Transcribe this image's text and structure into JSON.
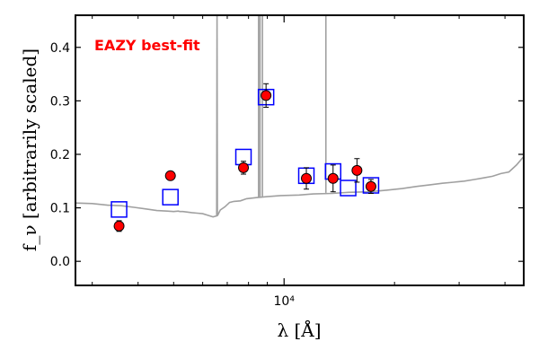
{
  "chart_data": {
    "type": "scatter",
    "annotation": "EAZY best-fit",
    "annotation_color": "#ff0000",
    "xlabel": "λ [Å]",
    "ylabel": "f_ν [arbitrarily scaled]",
    "x_scale": "log",
    "xlim": [
      2700,
      45000
    ],
    "ylim": [
      -0.045,
      0.46
    ],
    "x_tick_labels": [
      {
        "value": 10000,
        "label": "10⁴"
      }
    ],
    "y_ticks": [
      0.0,
      0.1,
      0.2,
      0.3,
      0.4
    ],
    "y_tick_labels": [
      "0.0",
      "0.1",
      "0.2",
      "0.3",
      "0.4"
    ],
    "grid": false,
    "series": [
      {
        "kind": "spectrum",
        "color": "#a0a0a0",
        "x": [
          2700,
          3000,
          3300,
          3600,
          3900,
          4200,
          4500,
          4800,
          5000,
          5150,
          5200,
          5300,
          5450,
          5600,
          5800,
          6000,
          6200,
          6400,
          6550,
          6565,
          6580,
          6700,
          6900,
          7100,
          7300,
          7600,
          7900,
          8400,
          9000,
          9800,
          11000,
          12000,
          13500,
          15000,
          17000,
          19000,
          21000,
          23000,
          25000,
          27000,
          29000,
          31000,
          33000,
          35000,
          37000,
          39000,
          41000,
          43000,
          45000
        ],
        "y": [
          0.109,
          0.108,
          0.105,
          0.104,
          0.101,
          0.098,
          0.095,
          0.094,
          0.093,
          0.094,
          0.093,
          0.093,
          0.092,
          0.091,
          0.09,
          0.089,
          0.086,
          0.083,
          0.085,
          0.46,
          0.085,
          0.096,
          0.102,
          0.11,
          0.112,
          0.113,
          0.117,
          0.119,
          0.121,
          0.123,
          0.124,
          0.126,
          0.127,
          0.129,
          0.13,
          0.133,
          0.136,
          0.14,
          0.143,
          0.146,
          0.148,
          0.15,
          0.153,
          0.156,
          0.159,
          0.164,
          0.167,
          0.18,
          0.196
        ]
      },
      {
        "kind": "emission_lines",
        "color": "#a0a0a0",
        "lines": [
          {
            "x": 8520,
            "y_base": 0.12,
            "y_top": 0.46
          },
          {
            "x": 8600,
            "y_base": 0.12,
            "y_top": 0.46
          },
          {
            "x": 8730,
            "y_base": 0.12,
            "y_top": 0.46
          },
          {
            "x": 13000,
            "y_base": 0.128,
            "y_top": 0.46
          }
        ]
      },
      {
        "kind": "model_fluxes",
        "marker": "square",
        "color": "#0000ff",
        "x": [
          3550,
          4900,
          7750,
          8930,
          11500,
          13600,
          14950,
          17250
        ],
        "y": [
          0.097,
          0.12,
          0.195,
          0.307,
          0.16,
          0.168,
          0.137,
          0.142
        ]
      },
      {
        "kind": "observed",
        "marker": "circle",
        "color": "#ff0000",
        "x": [
          3550,
          4900,
          7750,
          8930,
          11500,
          13600,
          15800,
          17250
        ],
        "y": [
          0.066,
          0.16,
          0.175,
          0.31,
          0.155,
          0.155,
          0.17,
          0.14
        ],
        "yerr": [
          0.01,
          0.005,
          0.012,
          0.022,
          0.02,
          0.025,
          0.022,
          0.013
        ]
      }
    ]
  }
}
